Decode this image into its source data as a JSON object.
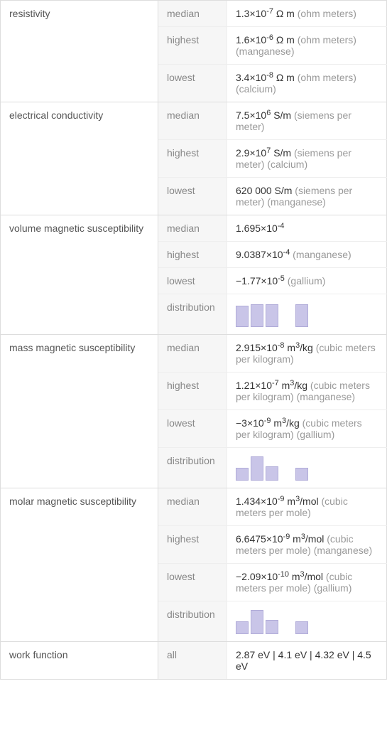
{
  "properties": [
    {
      "name": "resistivity",
      "rows": [
        {
          "stat": "median",
          "mant": "1.3",
          "exp": "-7",
          "unit_html": "Ω m",
          "ann": "(ohm meters)"
        },
        {
          "stat": "highest",
          "mant": "1.6",
          "exp": "-6",
          "unit_html": "Ω m",
          "ann": "(ohm meters) (manganese)"
        },
        {
          "stat": "lowest",
          "mant": "3.4",
          "exp": "-8",
          "unit_html": "Ω m",
          "ann": "(ohm meters) (calcium)"
        }
      ]
    },
    {
      "name": "electrical conductivity",
      "rows": [
        {
          "stat": "median",
          "mant": "7.5",
          "exp": "6",
          "unit_html": "S/m",
          "ann": "(siemens per meter)"
        },
        {
          "stat": "highest",
          "mant": "2.9",
          "exp": "7",
          "unit_html": "S/m",
          "ann": "(siemens per meter) (calcium)"
        },
        {
          "stat": "lowest",
          "plain": "620 000 S/m",
          "ann": "(siemens per meter) (manganese)"
        }
      ]
    },
    {
      "name": "volume magnetic susceptibility",
      "rows": [
        {
          "stat": "median",
          "mant": "1.695",
          "exp": "-4"
        },
        {
          "stat": "highest",
          "mant": "9.0387",
          "exp": "-4",
          "ann": "(manganese)"
        },
        {
          "stat": "lowest",
          "mant": "−1.77",
          "exp": "-5",
          "ann": "(gallium)"
        },
        {
          "stat": "distribution",
          "hist": {
            "bars": [
              30,
              32,
              32
            ],
            "spacers": 1,
            "tail": [
              32
            ],
            "color": "#c9c5e8"
          }
        }
      ]
    },
    {
      "name": "mass magnetic susceptibility",
      "rows": [
        {
          "stat": "median",
          "mant": "2.915",
          "exp": "-8",
          "unit_html": "m³/kg",
          "ann": "(cubic meters per kilogram)"
        },
        {
          "stat": "highest",
          "mant": "1.21",
          "exp": "-7",
          "unit_html": "m³/kg",
          "ann": "(cubic meters per kilogram) (manganese)"
        },
        {
          "stat": "lowest",
          "mant": "−3",
          "exp": "-9",
          "unit_html": "m³/kg",
          "ann": "(cubic meters per kilogram) (gallium)"
        },
        {
          "stat": "distribution",
          "hist": {
            "bars": [
              18,
              34,
              20
            ],
            "spacers": 1,
            "tail": [
              18
            ],
            "color": "#c9c5e8"
          }
        }
      ]
    },
    {
      "name": "molar magnetic susceptibility",
      "rows": [
        {
          "stat": "median",
          "mant": "1.434",
          "exp": "-9",
          "unit_html": "m³/mol",
          "ann": "(cubic meters per mole)"
        },
        {
          "stat": "highest",
          "mant": "6.6475",
          "exp": "-9",
          "unit_html": "m³/mol",
          "ann": "(cubic meters per mole) (manganese)"
        },
        {
          "stat": "lowest",
          "mant": "−2.09",
          "exp": "-10",
          "unit_html": "m³/mol",
          "ann": "(cubic meters per mole) (gallium)"
        },
        {
          "stat": "distribution",
          "hist": {
            "bars": [
              18,
              34,
              20
            ],
            "spacers": 1,
            "tail": [
              18
            ],
            "color": "#c9c5e8"
          }
        }
      ]
    },
    {
      "name": "work function",
      "rows": [
        {
          "stat": "all",
          "plain": "2.87 eV  |  4.1 eV  |  4.32 eV  |  4.5 eV"
        }
      ]
    }
  ],
  "unit_transforms": {
    "m³/kg": {
      "base": "m",
      "sup": "3",
      "post": "/kg"
    },
    "m³/mol": {
      "base": "m",
      "sup": "3",
      "post": "/mol"
    }
  }
}
